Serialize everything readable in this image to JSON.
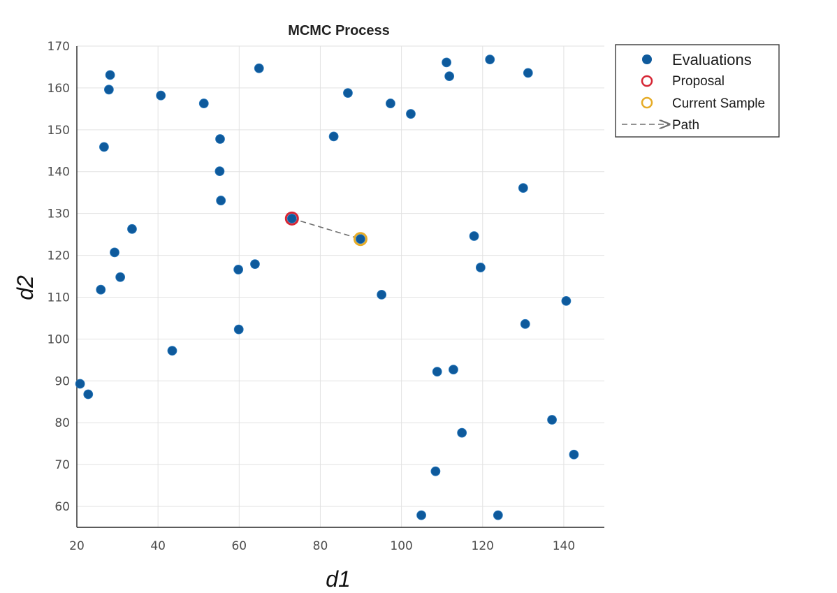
{
  "chart_data": {
    "type": "scatter",
    "title": "MCMC Process",
    "xlabel": "d1",
    "ylabel": "d2",
    "xlim": [
      20,
      150
    ],
    "ylim": [
      55,
      170
    ],
    "xticks": [
      20,
      40,
      60,
      80,
      100,
      120,
      140
    ],
    "yticks": [
      60,
      70,
      80,
      90,
      100,
      110,
      120,
      130,
      140,
      150,
      160,
      170
    ],
    "grid": true,
    "legend_position": "outside-top-right",
    "series": [
      {
        "name": "Evaluations",
        "marker": "filled-circle",
        "color": "#0e5a9c",
        "points": [
          [
            20.8,
            89.3
          ],
          [
            22.8,
            86.8
          ],
          [
            25.9,
            111.8
          ],
          [
            26.7,
            145.9
          ],
          [
            27.9,
            159.6
          ],
          [
            28.2,
            163.1
          ],
          [
            29.3,
            120.7
          ],
          [
            30.7,
            114.8
          ],
          [
            33.6,
            126.3
          ],
          [
            40.7,
            158.2
          ],
          [
            43.5,
            97.2
          ],
          [
            51.3,
            156.3
          ],
          [
            55.3,
            147.8
          ],
          [
            55.2,
            140.1
          ],
          [
            55.5,
            133.1
          ],
          [
            59.8,
            116.6
          ],
          [
            59.9,
            102.3
          ],
          [
            63.9,
            117.9
          ],
          [
            64.9,
            164.7
          ],
          [
            73.0,
            128.8
          ],
          [
            83.3,
            148.4
          ],
          [
            86.8,
            158.8
          ],
          [
            89.9,
            123.9
          ],
          [
            95.1,
            110.6
          ],
          [
            97.3,
            156.3
          ],
          [
            102.3,
            153.8
          ],
          [
            104.9,
            57.9
          ],
          [
            108.4,
            68.4
          ],
          [
            108.8,
            92.2
          ],
          [
            111.1,
            166.1
          ],
          [
            111.8,
            162.8
          ],
          [
            112.8,
            92.7
          ],
          [
            114.9,
            77.6
          ],
          [
            117.9,
            124.6
          ],
          [
            119.5,
            117.1
          ],
          [
            121.8,
            166.8
          ],
          [
            123.8,
            57.9
          ],
          [
            130.0,
            136.1
          ],
          [
            130.5,
            103.6
          ],
          [
            131.2,
            163.6
          ],
          [
            137.1,
            80.7
          ],
          [
            140.6,
            109.1
          ],
          [
            142.5,
            72.4
          ]
        ]
      },
      {
        "name": "Proposal",
        "marker": "open-circle",
        "color": "#d62735",
        "points": [
          [
            73.0,
            128.8
          ]
        ]
      },
      {
        "name": "Current Sample",
        "marker": "open-circle",
        "color": "#e6ac28",
        "points": [
          [
            89.9,
            123.9
          ]
        ]
      },
      {
        "name": "Path",
        "marker": "dashed-arrow",
        "color": "#6f6f6f",
        "points": [
          [
            73.0,
            128.8
          ],
          [
            89.9,
            123.9
          ]
        ]
      }
    ]
  }
}
